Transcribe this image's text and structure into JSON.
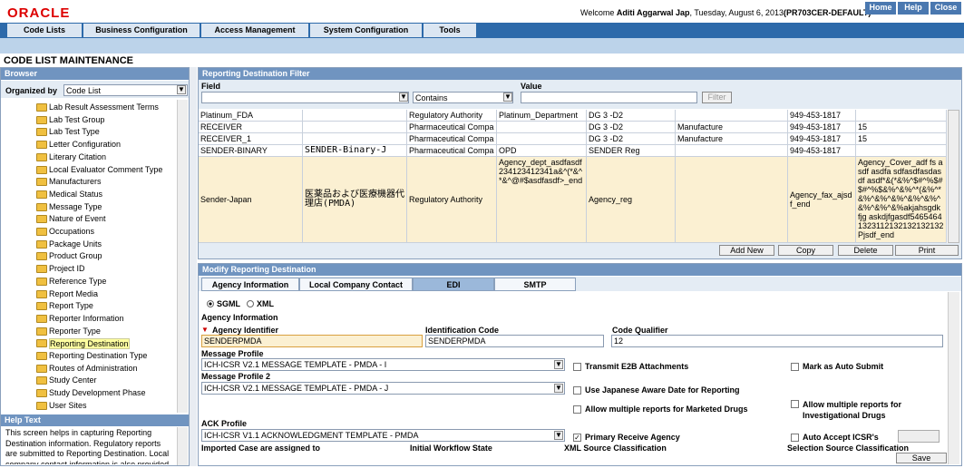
{
  "header": {
    "logo": "ORACLE",
    "welcome": "Welcome",
    "user": "Aditi Aggarwal Jap",
    "date": ", Tuesday, August 6, 2013",
    "env": "(PR703CER-DEFAULT)",
    "links": [
      "Home",
      "Help",
      "Close"
    ]
  },
  "nav": [
    "Code Lists",
    "Business Configuration",
    "Access Management",
    "System Configuration",
    "Tools"
  ],
  "page_title": "CODE LIST MAINTENANCE",
  "browser": {
    "title": "Browser",
    "organized_label": "Organized by",
    "organized_value": "Code List",
    "items": [
      "Lab Result Assessment Terms",
      "Lab Test Group",
      "Lab Test Type",
      "Letter Configuration",
      "Literary Citation",
      "Local Evaluator Comment Type",
      "Manufacturers",
      "Medical Status",
      "Message Type",
      "Nature of Event",
      "Occupations",
      "Package Units",
      "Product Group",
      "Project ID",
      "Reference Type",
      "Report Media",
      "Report Type",
      "Reporter Information",
      "Reporter Type",
      "Reporting Destination",
      "Reporting Destination Type",
      "Routes of Administration",
      "Study Center",
      "Study Development Phase",
      "User Sites"
    ],
    "selected": 19
  },
  "help": {
    "title": "Help Text",
    "text": "This screen helps in capturing Reporting Destination information. Regulatory reports are submitted to Reporting Destination. Local company contact information is also provided"
  },
  "filter": {
    "title": "Reporting Destination Filter",
    "field_label": "Field",
    "operator": "Contains",
    "value_label": "Value",
    "button": "Filter"
  },
  "table": {
    "rows": [
      [
        "Platinum_FDA",
        null,
        "Regulatory Authority",
        "Platinum_Department",
        "DG 3 -D2",
        null,
        "949-453-1817",
        null
      ],
      [
        "RECEIVER",
        null,
        "Pharmaceutical Company",
        null,
        "DG 3 -D2",
        "Manufacture",
        "949-453-1817",
        "15"
      ],
      [
        "RECEIVER_1",
        null,
        "Pharmaceutical Company",
        null,
        "DG 3 -D2",
        "Manufacture",
        "949-453-1817",
        "15"
      ],
      [
        "SENDER-BINARY",
        "SENDER-Binary-J",
        "Pharmaceutical Company",
        "OPD",
        "SENDER Reg",
        null,
        "949-453-1817",
        null
      ],
      [
        "Sender-Japan",
        "医薬品および医療機器代理店(PMDA)",
        "Regulatory Authority",
        "Agency_dept_asdfasdf234123412341a&^(*&^*&^@#$asdfasdf>_end",
        "Agency_reg",
        null,
        "Agency_fax_ajsdf_end",
        "Agency_Cover_adf fs asdf asdfa sdfasdfasdasdf asdf*&(*&%^$#^%$#$#^%$&%^&%^*(&%^*&%^&%^&%^&%^&%^&%^&%^&%akjahsgdk fjg askdjfgasdf54654641323112132132132132Pjsdf_end"
      ]
    ],
    "selected": 4,
    "buttons": [
      "Add New",
      "Copy",
      "Delete",
      "Print"
    ]
  },
  "modify": {
    "title": "Modify Reporting Destination",
    "tabs": [
      "Agency Information",
      "Local Company Contact",
      "EDI",
      "SMTP"
    ],
    "active_tab": 2,
    "radios": [
      "SGML",
      "XML"
    ],
    "section": "Agency Information",
    "agency_id_label": "Agency Identifier",
    "agency_id": "SENDERPMDA",
    "id_code_label": "Identification Code",
    "id_code": "SENDERPMDA",
    "qualifier_label": "Code Qualifier",
    "qualifier": "12",
    "profile_label": "Message Profile",
    "profile": "ICH-ICSR V2.1 MESSAGE TEMPLATE - PMDA - I",
    "profile2_label": "Message Profile 2",
    "profile2": "ICH-ICSR V2.1 MESSAGE TEMPLATE - PMDA - J",
    "checks": [
      "Transmit E2B Attachments",
      "Mark as Auto Submit",
      "Use Japanese Aware Date for Reporting",
      "Allow multiple reports for Marketed Drugs",
      "Allow multiple reports for Investigational Drugs",
      "Primary Receive Agency",
      "Auto Accept ICSR's"
    ],
    "ack_label": "ACK Profile",
    "ack": "ICH-ICSR V1.1 ACKNOWLEDGMENT TEMPLATE - PMDA",
    "bottom_labels": [
      "Imported Case are assigned to",
      "Initial Workflow State",
      "XML Source Classification",
      "Selection Source Classification"
    ],
    "save": "Save"
  }
}
